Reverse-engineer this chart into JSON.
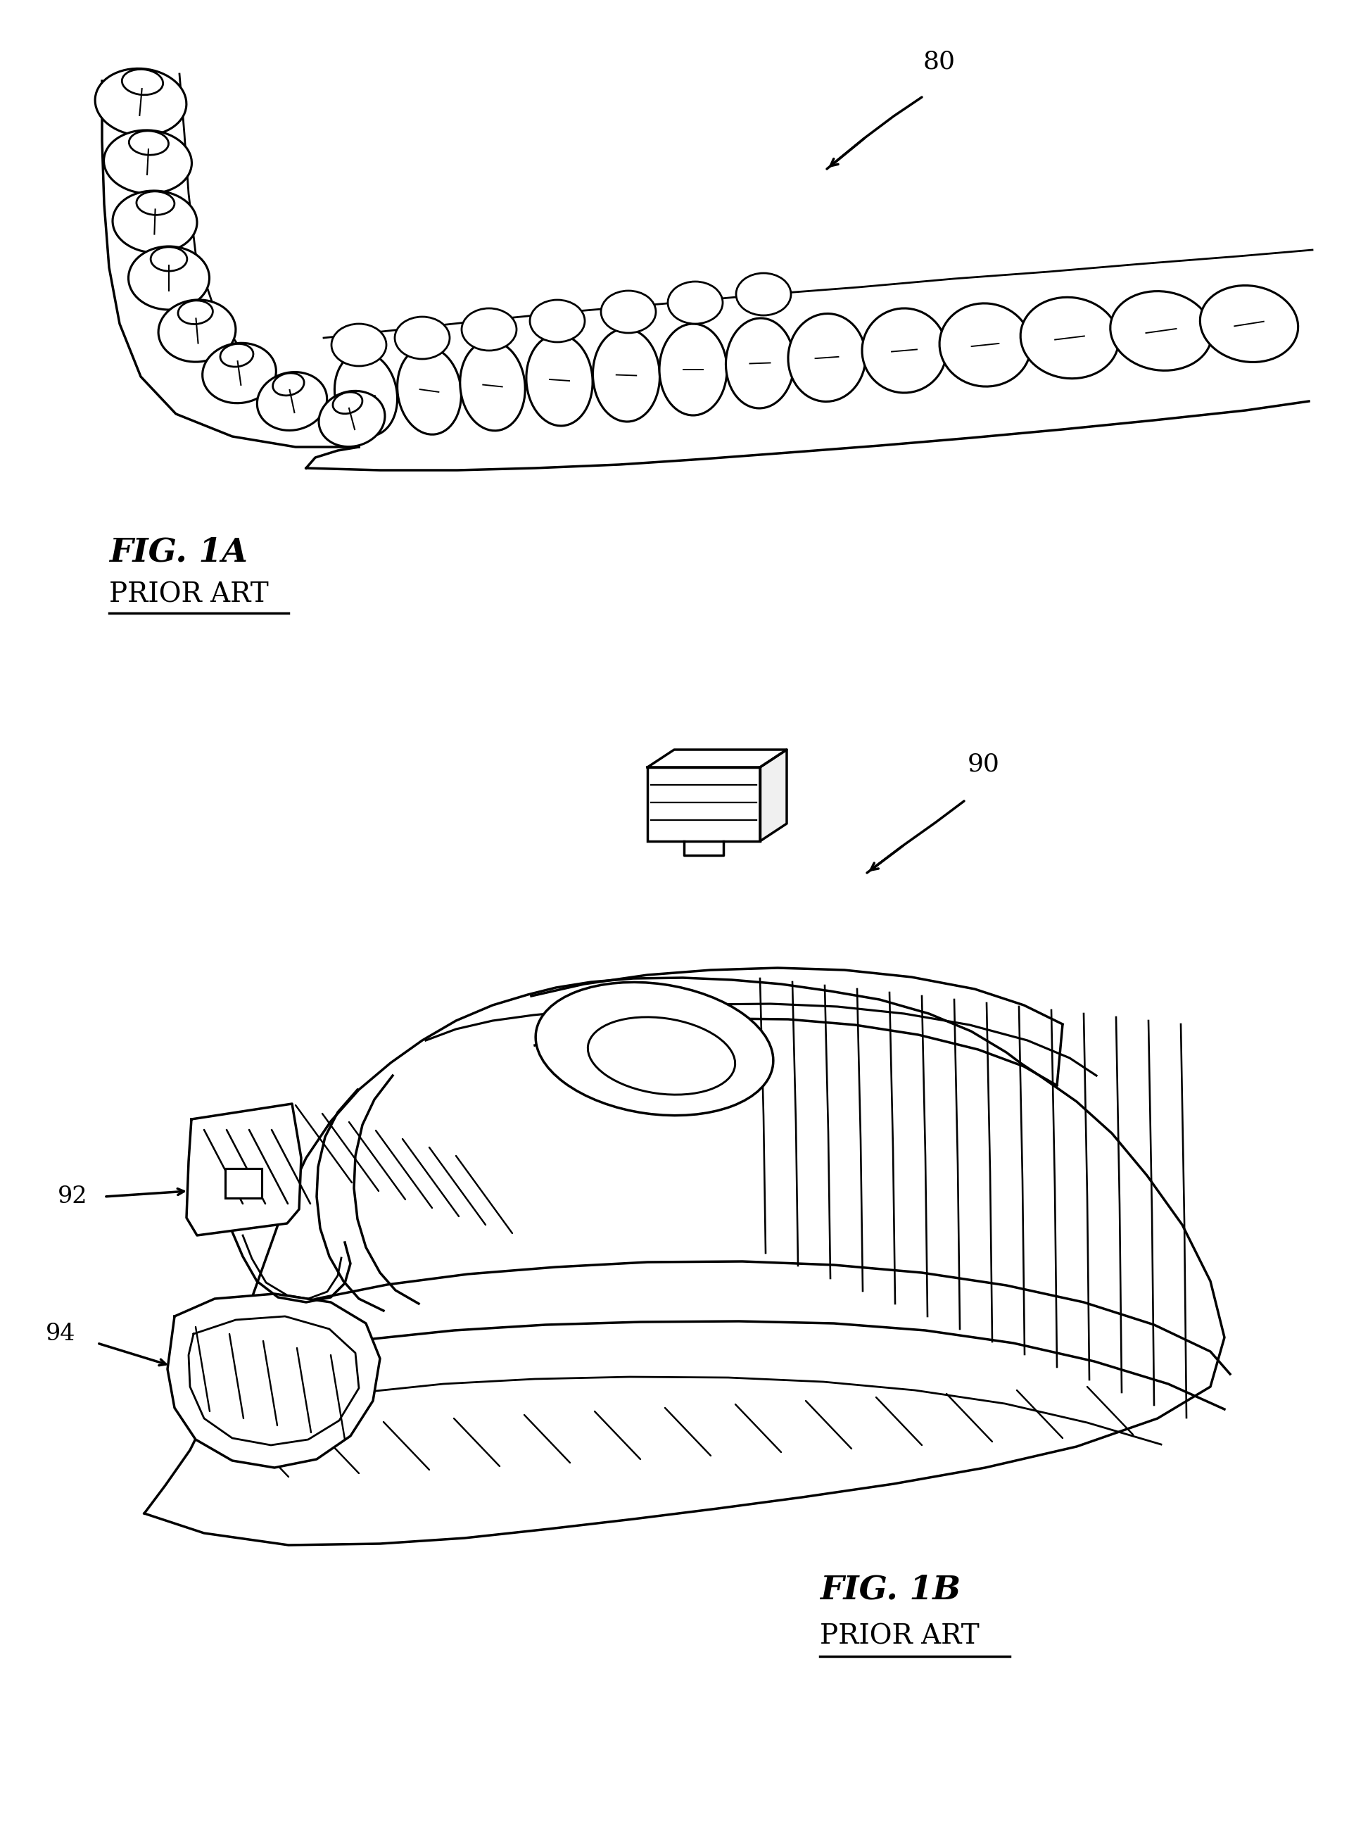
{
  "background_color": "#ffffff",
  "fig_width": 19.17,
  "fig_height": 26.04,
  "fig1a_label": "FIG. 1A",
  "fig1a_sub": "PRIOR ART",
  "fig1b_label": "FIG. 1B",
  "fig1b_sub": "PRIOR ART",
  "ref_80": "80",
  "ref_90": "90",
  "ref_92": "92",
  "ref_94": "94",
  "line_color": "#000000",
  "line_width": 2.5,
  "label_fontsize": 34,
  "sub_fontsize": 28,
  "ref_fontsize": 26
}
